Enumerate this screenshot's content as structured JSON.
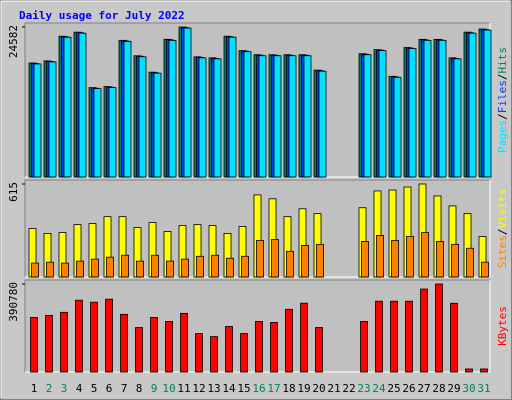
{
  "title": "Daily usage for July 2022",
  "categories": [
    "1",
    "2",
    "3",
    "4",
    "5",
    "6",
    "7",
    "8",
    "9",
    "10",
    "11",
    "12",
    "13",
    "14",
    "15",
    "16",
    "17",
    "18",
    "19",
    "20",
    "21",
    "22",
    "23",
    "24",
    "25",
    "26",
    "27",
    "28",
    "29",
    "30",
    "31"
  ],
  "weekend_days": [
    2,
    3,
    9,
    10,
    16,
    17,
    23,
    24,
    30,
    31
  ],
  "weekday_color": "#000000",
  "weekend_color": "#00805c",
  "legend_separator": "/",
  "chart_data": [
    {
      "type": "bar",
      "ylim": [
        0,
        24582
      ],
      "yticks": [
        24582
      ],
      "series": [
        {
          "name": "Pages",
          "color": "#00e0ff",
          "values": [
            18520,
            18860,
            22900,
            23570,
            14480,
            14650,
            22230,
            19700,
            17010,
            22390,
            24410,
            19530,
            19360,
            22900,
            20540,
            19870,
            19870,
            19870,
            19870,
            17340,
            null,
            null,
            20040,
            20710,
            16330,
            21050,
            22390,
            22390,
            19360,
            23570,
            24080
          ]
        },
        {
          "name": "Files",
          "color": "#0040ff",
          "values": [
            18600,
            18940,
            22980,
            23650,
            14560,
            14730,
            22310,
            19780,
            17090,
            22470,
            24490,
            19610,
            19440,
            22980,
            20620,
            19950,
            19950,
            19950,
            19950,
            17420,
            null,
            null,
            20120,
            20790,
            16410,
            21130,
            22470,
            22470,
            19440,
            23650,
            24160
          ]
        },
        {
          "name": "Hits",
          "color": "#00805c",
          "values": [
            18690,
            19030,
            23070,
            23740,
            14650,
            14820,
            22400,
            19870,
            17180,
            22560,
            24582,
            19700,
            19530,
            23070,
            20710,
            20040,
            20040,
            20040,
            20040,
            17510,
            null,
            null,
            20210,
            20880,
            16500,
            21220,
            22560,
            22560,
            19530,
            23740,
            24250
          ]
        }
      ]
    },
    {
      "type": "bar",
      "ylim": [
        0,
        615
      ],
      "yticks": [
        615
      ],
      "series": [
        {
          "name": "Sites",
          "color": "#ff8000",
          "values": [
            92,
            98,
            92,
            105,
            118,
            131,
            144,
            105,
            144,
            105,
            118,
            137,
            144,
            124,
            137,
            242,
            248,
            170,
            209,
            216,
            null,
            null,
            235,
            275,
            242,
            268,
            294,
            235,
            216,
            190,
            98
          ]
        },
        {
          "name": "Visits",
          "color": "#ffff00",
          "values": [
            320,
            288,
            294,
            347,
            353,
            399,
            399,
            327,
            360,
            301,
            340,
            347,
            340,
            288,
            334,
            543,
            517,
            399,
            451,
            419,
            null,
            null,
            458,
            569,
            575,
            595,
            615,
            536,
            470,
            419,
            268
          ]
        }
      ]
    },
    {
      "type": "bar",
      "ylim": [
        0,
        390780
      ],
      "yticks": [
        390780
      ],
      "series": [
        {
          "name": "KBytes",
          "color": "#ff0000",
          "values": [
            242570,
            251550,
            265030,
            318930,
            309950,
            323420,
            256040,
            197650,
            242570,
            224600,
            260530,
            170700,
            157220,
            202140,
            170700,
            224600,
            220110,
            278500,
            305460,
            197650,
            null,
            null,
            224600,
            314440,
            314440,
            314440,
            368340,
            390780,
            305460,
            13480,
            13480
          ]
        }
      ]
    }
  ]
}
